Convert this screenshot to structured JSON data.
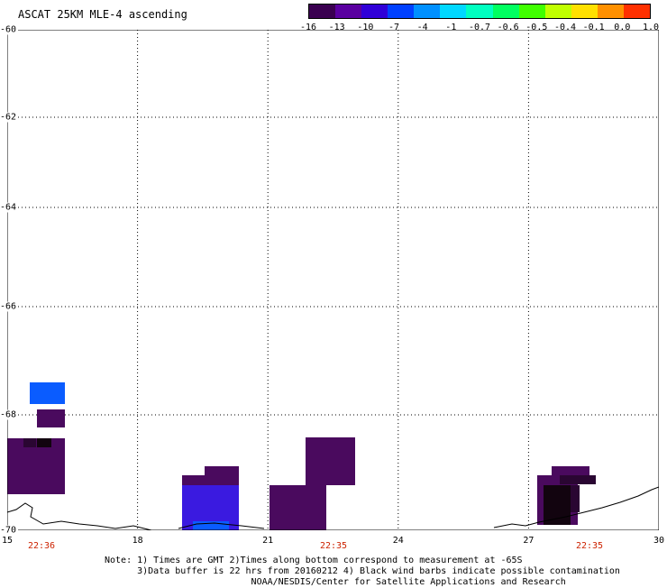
{
  "title": "ASCAT 25KM MLE-4 ascending",
  "colorbar": {
    "tick_labels": [
      "-16",
      "-13",
      "-10",
      "-7",
      "-4",
      "-1",
      "-0.7",
      "-0.6",
      "-0.5",
      "-0.4",
      "-0.1",
      "0.0",
      "1.0"
    ],
    "colors": [
      "#3a0050",
      "#5a00a0",
      "#3000d8",
      "#0040ff",
      "#0090ff",
      "#00d8ff",
      "#00ffc0",
      "#00ff60",
      "#40ff00",
      "#c0ff00",
      "#ffe000",
      "#ff9000",
      "#ff3000"
    ]
  },
  "axes": {
    "lat_labels": [
      "-60",
      "-62",
      "-64",
      "-66",
      "-68",
      "-70"
    ],
    "lon_labels": [
      "15",
      "18",
      "21",
      "24",
      "27",
      "30"
    ],
    "lat_range": [
      -60,
      -70
    ],
    "lon_range": [
      15,
      30
    ]
  },
  "pass_times": [
    "22:36",
    "22:35",
    "22:35"
  ],
  "notes": [
    "Note: 1) Times are GMT 2)Times along bottom correspond to measurement at -65S",
    "      3)Data buffer is 22 hrs from 20160212 4) Black wind barbs indicate possible contamination",
    "                           NOAA/NESDIS/Center for Satellite Applications and Research"
  ],
  "swath_colors": {
    "dark_purple": "#4a0a5e",
    "darker_purple": "#2a0632",
    "black_purple": "#12040f",
    "blue": "#0a5cff",
    "violet_blue": "#3a1ae0"
  }
}
